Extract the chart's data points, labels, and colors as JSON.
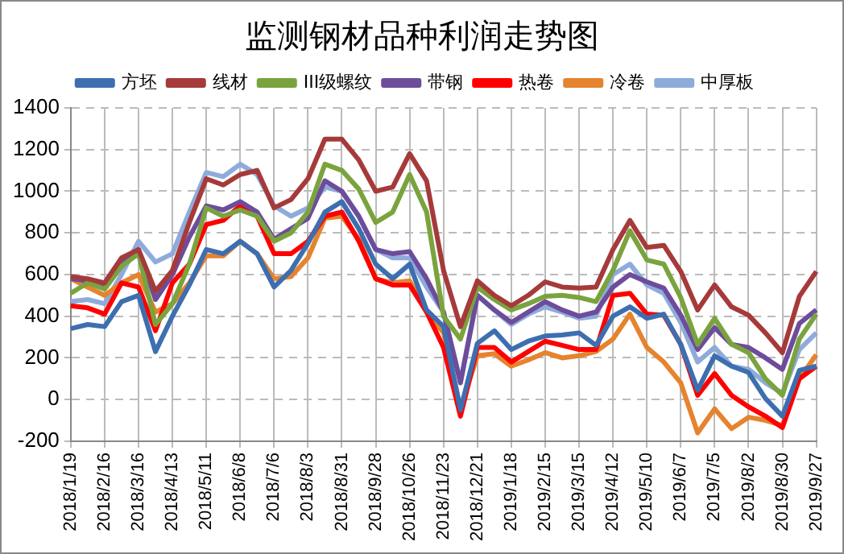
{
  "chart_data": {
    "type": "line",
    "title": "监测钢材品种利润走势图",
    "categories": [
      "2018/1/19",
      null,
      "2018/2/16",
      null,
      "2018/3/16",
      null,
      "2018/4/13",
      null,
      "2018/5/11",
      null,
      "2018/6/8",
      null,
      "2018/7/6",
      null,
      "2018/8/3",
      null,
      "2018/8/31",
      null,
      "2018/9/28",
      null,
      "2018/10/26",
      null,
      "2018/11/23",
      null,
      "2018/12/21",
      null,
      "2019/1/18",
      null,
      "2019/2/15",
      null,
      "2019/3/15",
      null,
      "2019/4/12",
      null,
      "2019/5/10",
      null,
      "2019/6/7",
      null,
      "2019/7/5",
      null,
      "2019/8/2",
      null,
      "2019/8/30",
      null,
      "2019/9/27"
    ],
    "series": [
      {
        "name": "方坯",
        "color": "#3d6fb0",
        "values": [
          340,
          360,
          350,
          470,
          500,
          230,
          400,
          550,
          720,
          700,
          760,
          700,
          540,
          620,
          750,
          900,
          950,
          820,
          650,
          580,
          650,
          430,
          350,
          -50,
          270,
          330,
          240,
          280,
          305,
          310,
          320,
          260,
          400,
          445,
          390,
          410,
          265,
          45,
          210,
          160,
          130,
          5,
          -80,
          140,
          160
        ]
      },
      {
        "name": "线材",
        "color": "#a63a3a",
        "values": [
          590,
          580,
          560,
          680,
          720,
          520,
          620,
          850,
          1060,
          1030,
          1080,
          1100,
          920,
          960,
          1060,
          1250,
          1250,
          1150,
          1000,
          1020,
          1180,
          1050,
          620,
          350,
          570,
          500,
          450,
          500,
          565,
          540,
          535,
          540,
          720,
          860,
          730,
          740,
          615,
          430,
          550,
          445,
          405,
          320,
          225,
          495,
          615
        ]
      },
      {
        "name": "III级螺纹",
        "color": "#7aa33e",
        "values": [
          510,
          560,
          530,
          640,
          700,
          360,
          460,
          650,
          920,
          880,
          910,
          880,
          760,
          800,
          900,
          1130,
          1100,
          1010,
          850,
          900,
          1080,
          900,
          400,
          290,
          540,
          480,
          430,
          460,
          495,
          500,
          490,
          470,
          620,
          810,
          670,
          650,
          490,
          265,
          390,
          265,
          225,
          100,
          20,
          290,
          410
        ]
      },
      {
        "name": "带钢",
        "color": "#6d4c9c",
        "values": [
          580,
          570,
          550,
          650,
          720,
          480,
          600,
          780,
          930,
          910,
          950,
          900,
          770,
          820,
          870,
          1050,
          1000,
          880,
          720,
          700,
          710,
          580,
          420,
          80,
          500,
          430,
          370,
          420,
          470,
          430,
          400,
          420,
          540,
          600,
          565,
          535,
          405,
          240,
          345,
          265,
          250,
          200,
          145,
          365,
          430
        ]
      },
      {
        "name": "热卷",
        "color": "#ff0000",
        "values": [
          450,
          440,
          410,
          560,
          540,
          330,
          560,
          650,
          840,
          860,
          930,
          880,
          700,
          700,
          760,
          880,
          900,
          760,
          580,
          550,
          550,
          420,
          250,
          -80,
          250,
          250,
          180,
          230,
          280,
          260,
          240,
          240,
          500,
          510,
          410,
          405,
          265,
          20,
          125,
          20,
          -35,
          -80,
          -135,
          100,
          160
        ]
      },
      {
        "name": "冷卷",
        "color": "#e6832e",
        "values": [
          580,
          540,
          500,
          560,
          600,
          420,
          460,
          560,
          690,
          690,
          760,
          700,
          580,
          590,
          680,
          870,
          880,
          770,
          580,
          560,
          570,
          420,
          320,
          -40,
          210,
          220,
          160,
          190,
          225,
          200,
          210,
          230,
          290,
          410,
          250,
          180,
          80,
          -160,
          -45,
          -140,
          -85,
          -100,
          -125,
          100,
          215
        ]
      },
      {
        "name": "中厚板",
        "color": "#8eabdc",
        "values": [
          470,
          480,
          460,
          600,
          760,
          660,
          700,
          900,
          1090,
          1070,
          1130,
          1080,
          930,
          880,
          920,
          1020,
          1000,
          880,
          720,
          680,
          680,
          540,
          420,
          85,
          500,
          430,
          360,
          410,
          445,
          420,
          390,
          400,
          600,
          650,
          550,
          510,
          370,
          180,
          250,
          160,
          145,
          80,
          30,
          240,
          320
        ]
      }
    ],
    "ylim": [
      -200,
      1400
    ],
    "yticks": [
      -200,
      0,
      200,
      400,
      600,
      800,
      1000,
      1200,
      1400
    ],
    "grid": true,
    "legend": "top",
    "marker": "none"
  }
}
